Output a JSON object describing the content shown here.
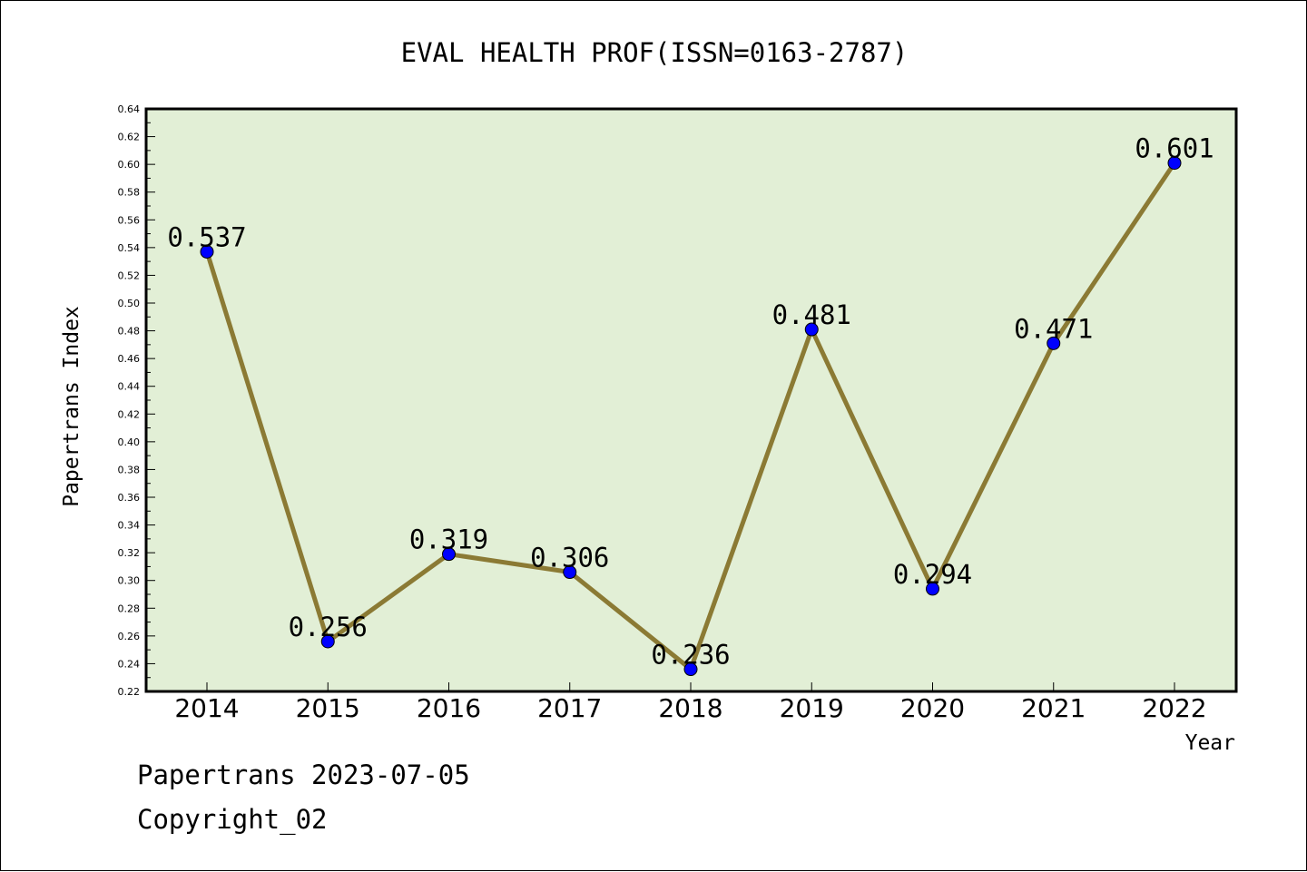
{
  "chart_data": {
    "type": "line",
    "title": "EVAL HEALTH PROF(ISSN=0163-2787)",
    "xlabel": "Year",
    "ylabel": "Papertrans Index",
    "categories": [
      "2014",
      "2015",
      "2016",
      "2017",
      "2018",
      "2019",
      "2020",
      "2021",
      "2022"
    ],
    "values": [
      0.537,
      0.256,
      0.319,
      0.306,
      0.236,
      0.481,
      0.294,
      0.471,
      0.601
    ],
    "data_labels": [
      "0.537",
      "0.256",
      "0.319",
      "0.306",
      "0.236",
      "0.481",
      "0.294",
      "0.471",
      "0.601"
    ],
    "ylim": [
      0.22,
      0.64
    ],
    "yticks": [
      "0.22",
      "0.24",
      "0.26",
      "0.28",
      "0.30",
      "0.32",
      "0.34",
      "0.36",
      "0.38",
      "0.40",
      "0.42",
      "0.44",
      "0.46",
      "0.48",
      "0.50",
      "0.52",
      "0.54",
      "0.56",
      "0.58",
      "0.60",
      "0.62",
      "0.64"
    ],
    "grid": false,
    "colors": {
      "plot_background": "#e2efd6",
      "line": "#8b7a34",
      "marker": "#0000ff",
      "marker_edge": "#000000"
    }
  },
  "footer": {
    "date_text": "Papertrans 2023-07-05",
    "copyright_text": "Copyright_02"
  }
}
